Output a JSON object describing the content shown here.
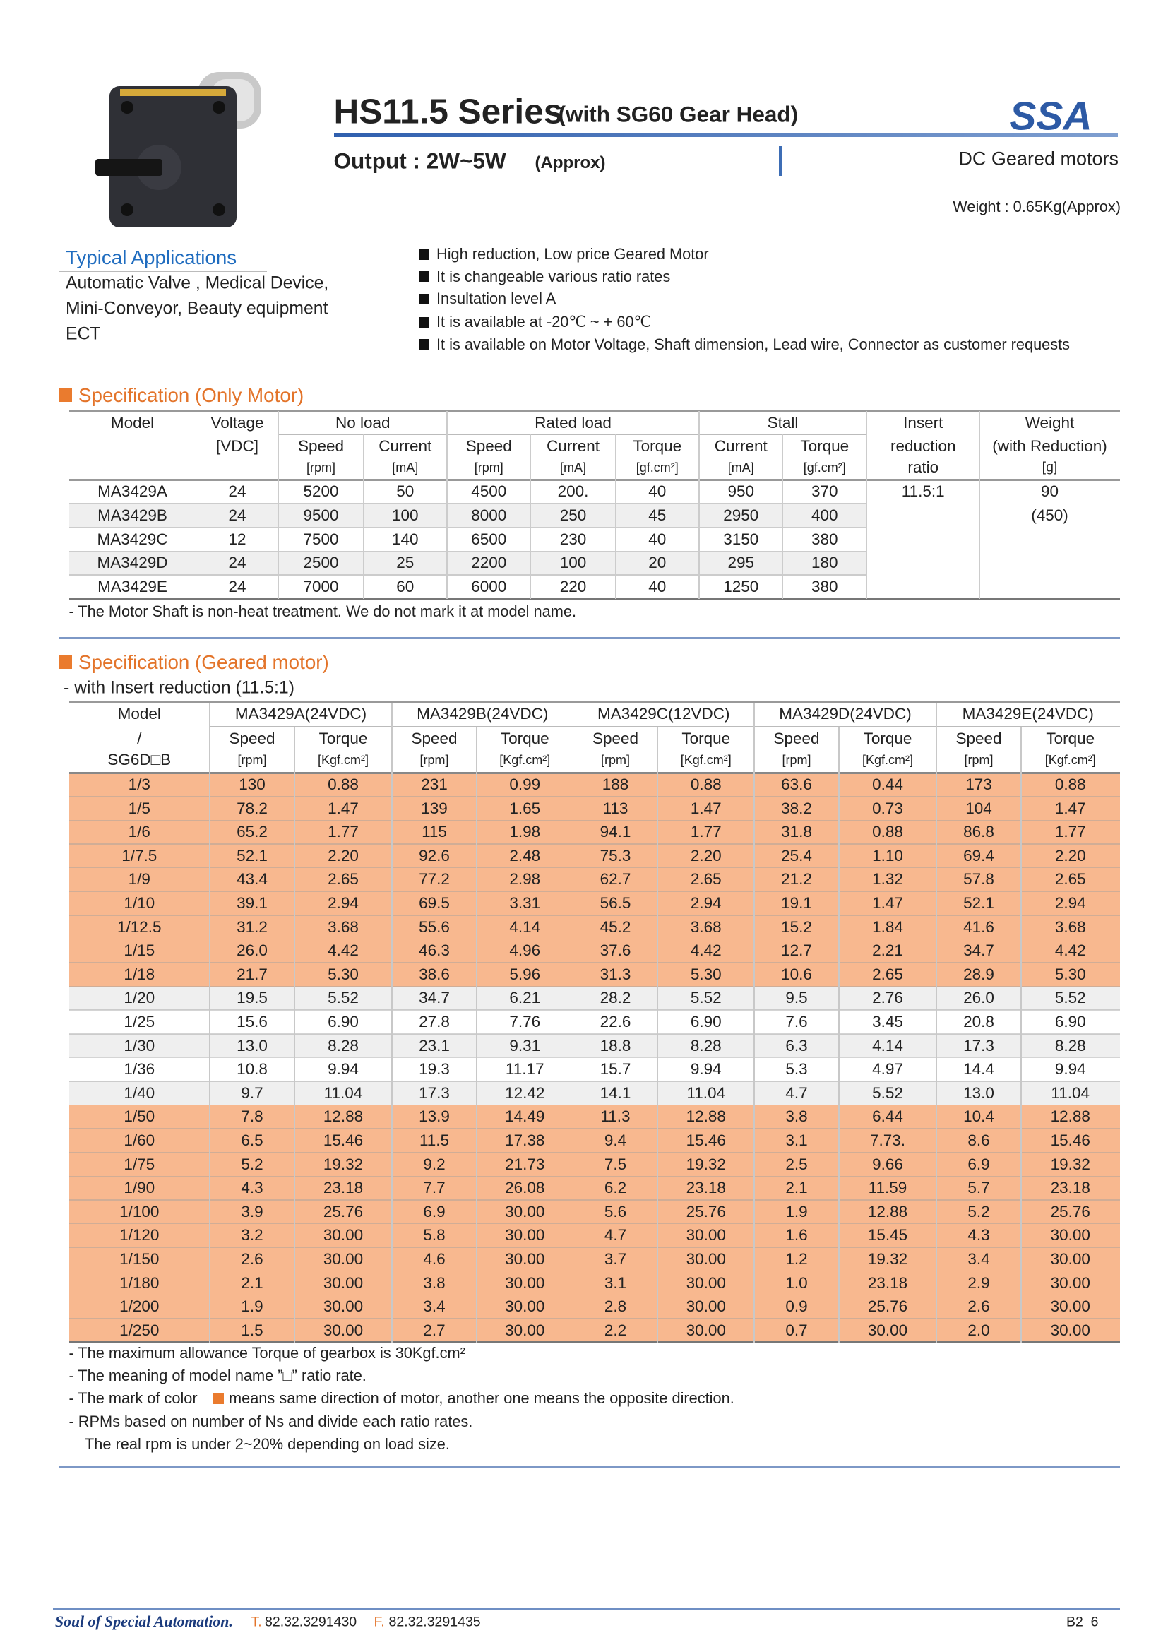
{
  "header": {
    "title": "HS11.5 Series",
    "title_suffix": "(with SG60 Gear Head)",
    "output": "Output : 2W~5W",
    "output_suffix": "(Approx)",
    "category": "DC Geared motors",
    "logo": "SSA",
    "weight": "Weight : 0.65Kg(Approx)"
  },
  "applications": {
    "title": "Typical Applications",
    "lines": [
      "Automatic Valve , Medical Device,",
      "Mini-Conveyor, Beauty equipment",
      "ECT"
    ]
  },
  "features": [
    "High reduction, Low price Geared Motor",
    "It is changeable various ratio rates",
    "Insultation level A",
    "It is available at -20℃ ~ + 60℃",
    "It is available on Motor Voltage, Shaft dimension, Lead wire, Connector as customer requests"
  ],
  "motor_table": {
    "heading": "Specification (Only Motor)",
    "model_head": "Model",
    "voltage_head": [
      "Voltage",
      "[VDC]"
    ],
    "groups": [
      {
        "name": "No load",
        "cols": [
          [
            "Speed",
            "[rpm]"
          ],
          [
            "Current",
            "[mA]"
          ]
        ]
      },
      {
        "name": "Rated load",
        "cols": [
          [
            "Speed",
            "[rpm]"
          ],
          [
            "Current",
            "[mA]"
          ],
          [
            "Torque",
            "[gf.cm²]"
          ]
        ]
      },
      {
        "name": "Stall",
        "cols": [
          [
            "Current",
            "[mA]"
          ],
          [
            "Torque",
            "[gf.cm²]"
          ]
        ]
      }
    ],
    "ratio_head": [
      "Insert",
      "reduction",
      "ratio"
    ],
    "weight_head": [
      "Weight",
      "(with Reduction)",
      "[g]"
    ],
    "rows": [
      [
        "MA3429A",
        "24",
        "5200",
        "50",
        "4500",
        "200.",
        "40",
        "950",
        "370"
      ],
      [
        "MA3429B",
        "24",
        "9500",
        "100",
        "8000",
        "250",
        "45",
        "2950",
        "400"
      ],
      [
        "MA3429C",
        "12",
        "7500",
        "140",
        "6500",
        "230",
        "40",
        "3150",
        "380"
      ],
      [
        "MA3429D",
        "24",
        "2500",
        "25",
        "2200",
        "100",
        "20",
        "295",
        "180"
      ],
      [
        "MA3429E",
        "24",
        "7000",
        "60",
        "6000",
        "220",
        "40",
        "1250",
        "380"
      ]
    ],
    "row_colors": [
      "#ffffff",
      "#efefef",
      "#ffffff",
      "#efefef",
      "#ffffff"
    ],
    "ratio": "11.5:1",
    "weight": [
      "90",
      "(450)"
    ],
    "note": "- The Motor Shaft is non-heat treatment. We do not mark it at model name."
  },
  "geared_table": {
    "heading": "Specification (Geared motor)",
    "subheading": "- with Insert reduction (11.5:1)",
    "model_head": [
      "Model",
      "/",
      "SG6D□B"
    ],
    "motors": [
      "MA3429A(24VDC)",
      "MA3429B(24VDC)",
      "MA3429C(12VDC)",
      "MA3429D(24VDC)",
      "MA3429E(24VDC)"
    ],
    "sub_heads": [
      [
        "Speed",
        "[rpm]"
      ],
      [
        "Torque",
        "[Kgf.cm²]"
      ]
    ],
    "rows": [
      [
        "1/3",
        "130",
        "0.88",
        "231",
        "0.99",
        "188",
        "0.88",
        "63.6",
        "0.44",
        "173",
        "0.88"
      ],
      [
        "1/5",
        "78.2",
        "1.47",
        "139",
        "1.65",
        "113",
        "1.47",
        "38.2",
        "0.73",
        "104",
        "1.47"
      ],
      [
        "1/6",
        "65.2",
        "1.77",
        "115",
        "1.98",
        "94.1",
        "1.77",
        "31.8",
        "0.88",
        "86.8",
        "1.77"
      ],
      [
        "1/7.5",
        "52.1",
        "2.20",
        "92.6",
        "2.48",
        "75.3",
        "2.20",
        "25.4",
        "1.10",
        "69.4",
        "2.20"
      ],
      [
        "1/9",
        "43.4",
        "2.65",
        "77.2",
        "2.98",
        "62.7",
        "2.65",
        "21.2",
        "1.32",
        "57.8",
        "2.65"
      ],
      [
        "1/10",
        "39.1",
        "2.94",
        "69.5",
        "3.31",
        "56.5",
        "2.94",
        "19.1",
        "1.47",
        "52.1",
        "2.94"
      ],
      [
        "1/12.5",
        "31.2",
        "3.68",
        "55.6",
        "4.14",
        "45.2",
        "3.68",
        "15.2",
        "1.84",
        "41.6",
        "3.68"
      ],
      [
        "1/15",
        "26.0",
        "4.42",
        "46.3",
        "4.96",
        "37.6",
        "4.42",
        "12.7",
        "2.21",
        "34.7",
        "4.42"
      ],
      [
        "1/18",
        "21.7",
        "5.30",
        "38.6",
        "5.96",
        "31.3",
        "5.30",
        "10.6",
        "2.65",
        "28.9",
        "5.30"
      ],
      [
        "1/20",
        "19.5",
        "5.52",
        "34.7",
        "6.21",
        "28.2",
        "5.52",
        "9.5",
        "2.76",
        "26.0",
        "5.52"
      ],
      [
        "1/25",
        "15.6",
        "6.90",
        "27.8",
        "7.76",
        "22.6",
        "6.90",
        "7.6",
        "3.45",
        "20.8",
        "6.90"
      ],
      [
        "1/30",
        "13.0",
        "8.28",
        "23.1",
        "9.31",
        "18.8",
        "8.28",
        "6.3",
        "4.14",
        "17.3",
        "8.28"
      ],
      [
        "1/36",
        "10.8",
        "9.94",
        "19.3",
        "11.17",
        "15.7",
        "9.94",
        "5.3",
        "4.97",
        "14.4",
        "9.94"
      ],
      [
        "1/40",
        "9.7",
        "11.04",
        "17.3",
        "12.42",
        "14.1",
        "11.04",
        "4.7",
        "5.52",
        "13.0",
        "11.04"
      ],
      [
        "1/50",
        "7.8",
        "12.88",
        "13.9",
        "14.49",
        "11.3",
        "12.88",
        "3.8",
        "6.44",
        "10.4",
        "12.88"
      ],
      [
        "1/60",
        "6.5",
        "15.46",
        "11.5",
        "17.38",
        "9.4",
        "15.46",
        "3.1",
        "7.73.",
        "8.6",
        "15.46"
      ],
      [
        "1/75",
        "5.2",
        "19.32",
        "9.2",
        "21.73",
        "7.5",
        "19.32",
        "2.5",
        "9.66",
        "6.9",
        "19.32"
      ],
      [
        "1/90",
        "4.3",
        "23.18",
        "7.7",
        "26.08",
        "6.2",
        "23.18",
        "2.1",
        "11.59",
        "5.7",
        "23.18"
      ],
      [
        "1/100",
        "3.9",
        "25.76",
        "6.9",
        "30.00",
        "5.6",
        "25.76",
        "1.9",
        "12.88",
        "5.2",
        "25.76"
      ],
      [
        "1/120",
        "3.2",
        "30.00",
        "5.8",
        "30.00",
        "4.7",
        "30.00",
        "1.6",
        "15.45",
        "4.3",
        "30.00"
      ],
      [
        "1/150",
        "2.6",
        "30.00",
        "4.6",
        "30.00",
        "3.7",
        "30.00",
        "1.2",
        "19.32",
        "3.4",
        "30.00"
      ],
      [
        "1/180",
        "2.1",
        "30.00",
        "3.8",
        "30.00",
        "3.1",
        "30.00",
        "1.0",
        "23.18",
        "2.9",
        "30.00"
      ],
      [
        "1/200",
        "1.9",
        "30.00",
        "3.4",
        "30.00",
        "2.8",
        "30.00",
        "0.9",
        "25.76",
        "2.6",
        "30.00"
      ],
      [
        "1/250",
        "1.5",
        "30.00",
        "2.7",
        "30.00",
        "2.2",
        "30.00",
        "0.7",
        "30.00",
        "2.0",
        "30.00"
      ]
    ],
    "row_colors": [
      "#f8b88f",
      "#f8b88f",
      "#f8b88f",
      "#f8b88f",
      "#f8b88f",
      "#f8b88f",
      "#f8b88f",
      "#f8b88f",
      "#f8b88f",
      "#efefef",
      "#ffffff",
      "#efefef",
      "#ffffff",
      "#efefef",
      "#f8b88f",
      "#f8b88f",
      "#f8b88f",
      "#f8b88f",
      "#f8b88f",
      "#f8b88f",
      "#f8b88f",
      "#f8b88f",
      "#f8b88f",
      "#f8b88f"
    ],
    "notes": [
      "- The maximum allowance Torque of gearbox is 30Kgf.cm²",
      "- The meaning of model name ”□” ratio rate."
    ],
    "color_note": [
      "- The mark of color",
      "means same direction of motor, another one means the opposite direction."
    ],
    "rpm_note": [
      "- RPMs based on number of Ns and divide each ratio rates.",
      "The real rpm is under 2~20% depending on load size."
    ]
  },
  "footer": {
    "slogan": "Soul of Special Automation.",
    "tel_label": "T.",
    "tel": "82.32.3291430",
    "fax_label": "F.",
    "fax": "82.32.3291435",
    "page": "B2  6"
  }
}
